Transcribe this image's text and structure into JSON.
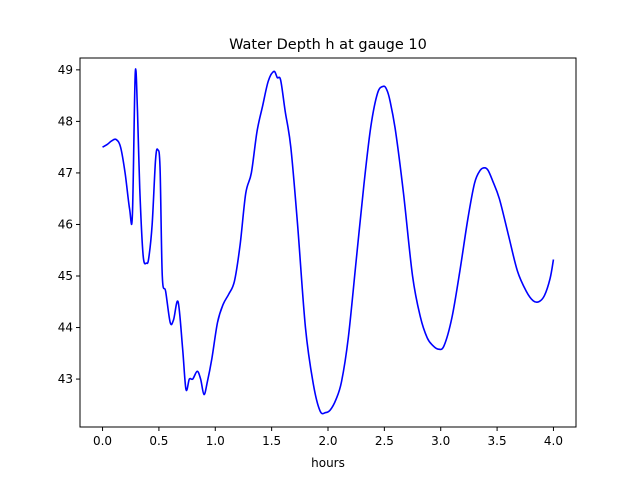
{
  "chart_data": {
    "type": "line",
    "title": "Water Depth h at gauge 10",
    "xlabel": "hours",
    "ylabel": "",
    "xlim": [
      -0.2,
      4.2
    ],
    "ylim": [
      42.07,
      49.23
    ],
    "xticks": [
      0.0,
      0.5,
      1.0,
      1.5,
      2.0,
      2.5,
      3.0,
      3.5,
      4.0
    ],
    "xtick_labels": [
      "0.0",
      "0.5",
      "1.0",
      "1.5",
      "2.0",
      "2.5",
      "3.0",
      "3.5",
      "4.0"
    ],
    "yticks": [
      43,
      44,
      45,
      46,
      47,
      48,
      49
    ],
    "ytick_labels": [
      "43",
      "44",
      "45",
      "46",
      "47",
      "48",
      "49"
    ],
    "grid": false,
    "legend": "none",
    "series": [
      {
        "color": "#0000ff",
        "x": [
          0.0,
          0.04,
          0.08,
          0.12,
          0.16,
          0.2,
          0.24,
          0.265,
          0.29,
          0.31,
          0.33,
          0.36,
          0.39,
          0.41,
          0.44,
          0.47,
          0.49,
          0.51,
          0.53,
          0.56,
          0.6,
          0.63,
          0.67,
          0.71,
          0.74,
          0.77,
          0.8,
          0.84,
          0.87,
          0.9,
          0.93,
          0.97,
          1.02,
          1.07,
          1.12,
          1.17,
          1.22,
          1.27,
          1.32,
          1.37,
          1.42,
          1.47,
          1.52,
          1.55,
          1.58,
          1.62,
          1.67,
          1.73,
          1.8,
          1.87,
          1.93,
          1.98,
          2.02,
          2.07,
          2.12,
          2.18,
          2.25,
          2.32,
          2.38,
          2.44,
          2.49,
          2.52,
          2.55,
          2.6,
          2.67,
          2.75,
          2.82,
          2.88,
          2.93,
          2.98,
          3.03,
          3.1,
          3.17,
          3.24,
          3.3,
          3.35,
          3.39,
          3.42,
          3.46,
          3.52,
          3.6,
          3.68,
          3.76,
          3.82,
          3.87,
          3.92,
          3.97,
          4.0
        ],
        "y": [
          47.5,
          47.55,
          47.62,
          47.65,
          47.5,
          47.0,
          46.3,
          46.2,
          48.93,
          48.2,
          46.7,
          45.4,
          45.25,
          45.35,
          46.0,
          47.25,
          47.45,
          47.1,
          45.0,
          44.7,
          44.1,
          44.15,
          44.5,
          43.6,
          42.8,
          43.0,
          43.0,
          43.15,
          43.0,
          42.7,
          42.95,
          43.4,
          44.1,
          44.45,
          44.65,
          44.9,
          45.6,
          46.6,
          47.0,
          47.8,
          48.3,
          48.78,
          48.97,
          48.85,
          48.8,
          48.2,
          47.5,
          46.0,
          44.0,
          42.9,
          42.38,
          42.35,
          42.4,
          42.6,
          42.95,
          43.8,
          45.3,
          46.8,
          47.9,
          48.55,
          48.68,
          48.62,
          48.4,
          47.8,
          46.6,
          45.0,
          44.2,
          43.8,
          43.65,
          43.58,
          43.65,
          44.2,
          45.1,
          46.1,
          46.8,
          47.05,
          47.1,
          47.05,
          46.85,
          46.5,
          45.8,
          45.1,
          44.7,
          44.52,
          44.5,
          44.62,
          44.95,
          45.32
        ]
      }
    ]
  }
}
